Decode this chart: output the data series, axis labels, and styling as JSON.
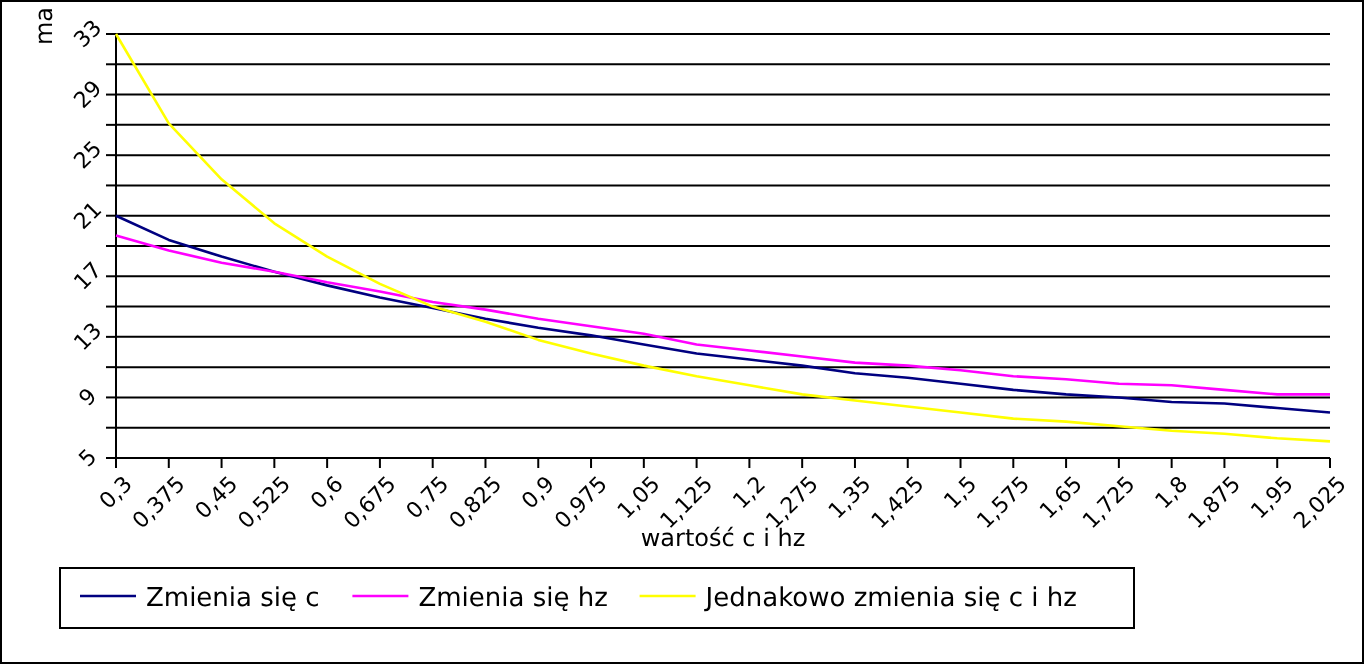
{
  "chart_data": {
    "type": "line",
    "xlabel": "wartość c i hz",
    "ylabel": "ma",
    "categories": [
      "0,3",
      "0,375",
      "0,45",
      "0,525",
      "0,6",
      "0,675",
      "0,75",
      "0,825",
      "0,9",
      "0,975",
      "1,05",
      "1,125",
      "1,2",
      "1,275",
      "1,35",
      "1,425",
      "1,5",
      "1,575",
      "1,65",
      "1,725",
      "1,8",
      "1,875",
      "1,95",
      "2,025"
    ],
    "series": [
      {
        "name": "Zmienia się c",
        "color": "#000080",
        "values": [
          21,
          19.4,
          18.3,
          17.3,
          16.4,
          15.6,
          14.9,
          14.2,
          13.6,
          13.1,
          12.5,
          11.9,
          11.5,
          11.1,
          10.6,
          10.3,
          9.9,
          9.5,
          9.2,
          9.0,
          8.7,
          8.6,
          8.3,
          8.0
        ]
      },
      {
        "name": "Zmienia się hz",
        "color": "#ff00ff",
        "values": [
          19.7,
          18.7,
          17.9,
          17.3,
          16.6,
          16.0,
          15.3,
          14.8,
          14.2,
          13.7,
          13.2,
          12.5,
          12.1,
          11.7,
          11.3,
          11.1,
          10.8,
          10.4,
          10.2,
          9.9,
          9.8,
          9.5,
          9.2,
          9.2
        ]
      },
      {
        "name": "Jednakowo zmienia się c i hz",
        "color": "#ffff00",
        "values": [
          33,
          27.1,
          23.4,
          20.5,
          18.3,
          16.5,
          15.0,
          14.0,
          12.8,
          11.9,
          11.1,
          10.4,
          9.8,
          9.2,
          8.8,
          8.4,
          8.0,
          7.6,
          7.4,
          7.1,
          6.8,
          6.6,
          6.3,
          6.1
        ]
      }
    ],
    "ylim": [
      5,
      33
    ],
    "yticks": [
      5,
      {
        "value": 7,
        "label": null
      },
      9,
      {
        "value": 11,
        "label": null
      },
      13,
      {
        "value": 15,
        "label": null
      },
      17,
      {
        "value": 19,
        "label": null
      },
      21,
      {
        "value": 23,
        "label": null
      },
      25,
      {
        "value": 27,
        "label": null
      },
      29,
      {
        "value": 31,
        "label": null
      },
      33
    ],
    "grid": "y",
    "legend": "bottom",
    "marker": "none",
    "line_style": "solid"
  }
}
